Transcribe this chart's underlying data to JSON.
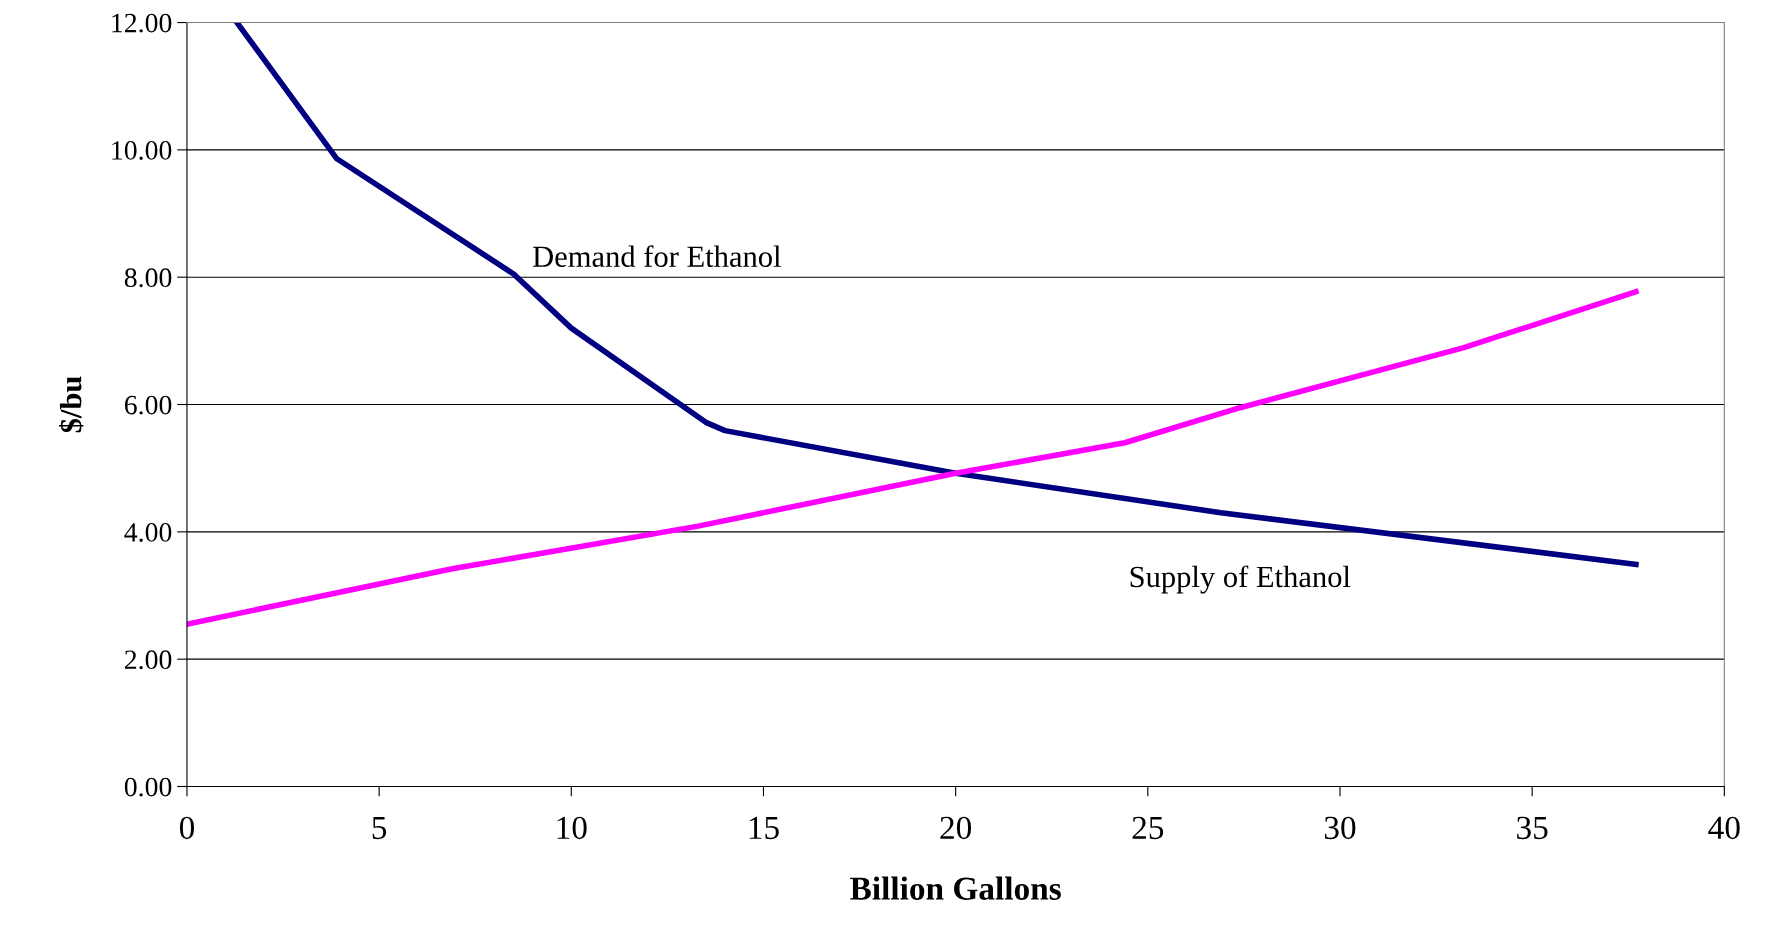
{
  "chart_data": {
    "type": "line",
    "xlabel": "Billion Gallons",
    "ylabel": "$/bu",
    "xlim": [
      0,
      40
    ],
    "xticks": [
      0,
      5,
      10,
      15,
      20,
      25,
      30,
      35,
      40
    ],
    "ylim": [
      0,
      12
    ],
    "yticks": [
      {
        "value": 0,
        "label": "0.00"
      },
      {
        "value": 2,
        "label": "2.00"
      },
      {
        "value": 4,
        "label": "4.00"
      },
      {
        "value": 6,
        "label": "6.00"
      },
      {
        "value": 8,
        "label": "8.00"
      },
      {
        "value": 10,
        "label": "10.00"
      },
      {
        "value": 12,
        "label": "12.00"
      }
    ],
    "grid": "y",
    "legend": false,
    "marker": "none",
    "line_style": "solid",
    "series": [
      {
        "color": "#000080",
        "x": [
          1.3,
          3.9,
          8.5,
          10.0,
          13.5,
          14.0,
          20.0,
          26.9,
          37.7
        ],
        "values": [
          12.0,
          9.86,
          8.05,
          7.2,
          5.72,
          5.59,
          4.92,
          4.3,
          3.49
        ]
      },
      {
        "color": "#ff00ff",
        "x": [
          0,
          6.9,
          13.3,
          20.0,
          24.4,
          27.4,
          33.2,
          37.7
        ],
        "values": [
          2.55,
          3.42,
          4.09,
          4.92,
          5.4,
          5.95,
          6.89,
          7.77
        ]
      }
    ],
    "annotations": [
      "Demand for Ethanol",
      "Supply of Ethanol"
    ]
  }
}
